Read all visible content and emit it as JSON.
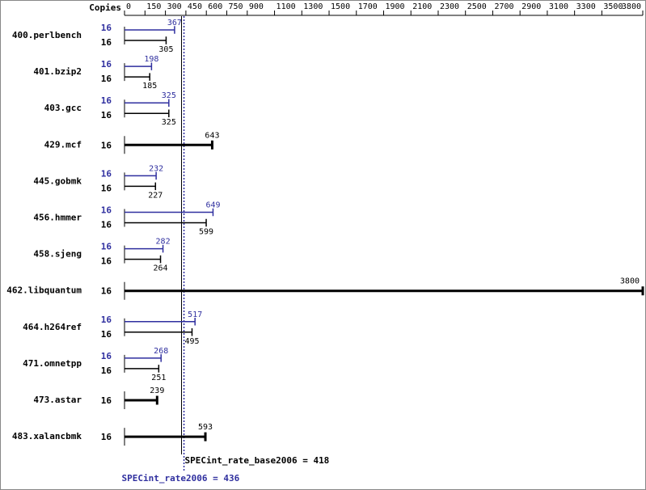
{
  "chart_data": {
    "type": "bar",
    "orientation": "horizontal",
    "copies_header": "Copies",
    "categories": [
      "400.perlbench",
      "401.bzip2",
      "403.gcc",
      "429.mcf",
      "445.gobmk",
      "456.hmmer",
      "458.sjeng",
      "462.libquantum",
      "464.h264ref",
      "471.omnetpp",
      "473.astar",
      "483.xalancbmk"
    ],
    "series": [
      {
        "color": "#2f2f9f",
        "copies": [
          16,
          16,
          16,
          null,
          16,
          16,
          16,
          null,
          16,
          16,
          null,
          null
        ],
        "values": [
          367,
          198,
          325,
          null,
          232,
          649,
          282,
          null,
          517,
          268,
          null,
          null
        ]
      },
      {
        "color": "#000000",
        "copies": [
          16,
          16,
          16,
          16,
          16,
          16,
          16,
          16,
          16,
          16,
          16,
          16
        ],
        "values": [
          305,
          185,
          325,
          643,
          227,
          599,
          264,
          3800,
          495,
          251,
          239,
          593
        ]
      }
    ],
    "xlim": [
      0,
      3800
    ],
    "xticks": [
      0,
      150,
      300,
      450,
      600,
      750,
      900,
      1100,
      1300,
      1500,
      1700,
      1900,
      2100,
      2300,
      2500,
      2700,
      2900,
      3100,
      3300,
      3500,
      3800
    ],
    "reference_lines": [
      {
        "label": "SPECint_rate_base2006 = 418",
        "value": 418,
        "color": "#000000",
        "style": "solid"
      },
      {
        "label": "SPECint_rate2006 = 436",
        "value": 436,
        "color": "#2f2f9f",
        "style": "dotted"
      }
    ]
  }
}
